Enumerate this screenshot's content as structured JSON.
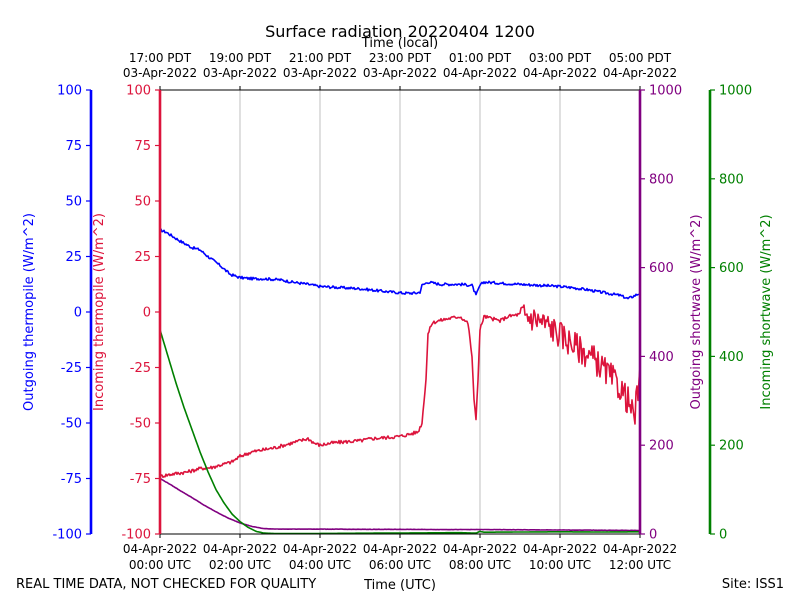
{
  "chart_data": {
    "type": "line",
    "title": "Surface radiation 20220404 1200",
    "top_xlabel": "Time (local)",
    "xlabel": "Time (UTC)",
    "footer_left": "REAL TIME DATA, NOT CHECKED FOR QUALITY",
    "footer_right": "Site: ISS1",
    "x_range_hours_utc": [
      0,
      12
    ],
    "grid": "vertical",
    "bottom_ticks": [
      {
        "h": 0,
        "l1": "04-Apr-2022",
        "l2": "00:00 UTC"
      },
      {
        "h": 2,
        "l1": "04-Apr-2022",
        "l2": "02:00 UTC"
      },
      {
        "h": 4,
        "l1": "04-Apr-2022",
        "l2": "04:00 UTC"
      },
      {
        "h": 6,
        "l1": "04-Apr-2022",
        "l2": "06:00 UTC"
      },
      {
        "h": 8,
        "l1": "04-Apr-2022",
        "l2": "08:00 UTC"
      },
      {
        "h": 10,
        "l1": "04-Apr-2022",
        "l2": "10:00 UTC"
      },
      {
        "h": 12,
        "l1": "04-Apr-2022",
        "l2": "12:00 UTC"
      }
    ],
    "top_ticks": [
      {
        "h": 0,
        "l1": "17:00 PDT",
        "l2": "03-Apr-2022"
      },
      {
        "h": 2,
        "l1": "19:00 PDT",
        "l2": "03-Apr-2022"
      },
      {
        "h": 4,
        "l1": "21:00 PDT",
        "l2": "03-Apr-2022"
      },
      {
        "h": 6,
        "l1": "23:00 PDT",
        "l2": "03-Apr-2022"
      },
      {
        "h": 8,
        "l1": "01:00 PDT",
        "l2": "04-Apr-2022"
      },
      {
        "h": 10,
        "l1": "03:00 PDT",
        "l2": "04-Apr-2022"
      },
      {
        "h": 12,
        "l1": "05:00 PDT",
        "l2": "04-Apr-2022"
      }
    ],
    "axes": [
      {
        "id": "out_thermo",
        "label": "Outgoing thermopile (W/m^2)",
        "color": "#0000ff",
        "range": [
          -100,
          100
        ],
        "ticks": [
          -100,
          -75,
          -50,
          -25,
          0,
          25,
          50,
          75,
          100
        ]
      },
      {
        "id": "in_thermo",
        "label": "Incoming thermopile (W/m^2)",
        "color": "#dc143c",
        "range": [
          -100,
          100
        ],
        "ticks": [
          -100,
          -75,
          -50,
          -25,
          0,
          25,
          50,
          75,
          100
        ]
      },
      {
        "id": "out_sw",
        "label": "Outgoing shortwave (W/m^2)",
        "color": "#800080",
        "range": [
          0,
          1000
        ],
        "ticks": [
          0,
          200,
          400,
          600,
          800,
          1000
        ]
      },
      {
        "id": "in_sw",
        "label": "Incoming shortwave (W/m^2)",
        "color": "#008000",
        "range": [
          0,
          1000
        ],
        "ticks": [
          0,
          200,
          400,
          600,
          800,
          1000
        ]
      }
    ],
    "series": [
      {
        "name": "Outgoing thermopile",
        "axis": "out_thermo",
        "color": "#0000ff",
        "noise": 0.6,
        "x": [
          0,
          0.15,
          0.5,
          0.8,
          1.0,
          1.2,
          1.5,
          1.75,
          2.0,
          2.3,
          2.6,
          3.0,
          3.3,
          3.7,
          4.0,
          4.5,
          5.0,
          5.5,
          5.8,
          6.1,
          6.4,
          6.5,
          6.55,
          6.7,
          7.0,
          7.5,
          7.8,
          7.9,
          8.0,
          8.1,
          8.5,
          9.0,
          9.5,
          10.0,
          10.3,
          10.7,
          11.0,
          11.5,
          11.7,
          12.0
        ],
        "y": [
          37,
          36,
          32,
          29,
          28,
          25,
          21,
          17,
          15.5,
          15,
          15,
          14.5,
          13.5,
          12.5,
          11.5,
          11,
          10.5,
          9.5,
          9,
          8.5,
          8.5,
          9,
          12,
          13.5,
          12.5,
          12.5,
          12,
          7.5,
          12,
          13.5,
          13,
          12.5,
          12,
          11.5,
          11,
          10,
          9,
          7.5,
          6,
          8.5
        ]
      },
      {
        "name": "Incoming thermopile",
        "axis": "in_thermo",
        "color": "#dc143c",
        "noise": 0.8,
        "x": [
          0,
          0.3,
          0.7,
          1.0,
          1.3,
          1.6,
          1.8,
          2.0,
          2.3,
          2.6,
          2.9,
          3.2,
          3.5,
          3.7,
          3.85,
          4.0,
          4.3,
          4.6,
          5.0,
          5.3,
          5.7,
          6.0,
          6.25,
          6.45,
          6.55,
          6.65,
          6.7,
          6.8,
          6.95,
          7.2,
          7.5,
          7.7,
          7.8,
          7.85,
          7.9,
          7.95,
          8.0,
          8.1,
          8.3,
          8.5,
          8.7,
          9.0,
          9.4,
          9.7,
          10.0,
          10.3,
          10.6,
          10.9,
          11.2,
          11.5,
          11.7,
          11.85,
          12.0
        ],
        "y": [
          -74,
          -73,
          -72,
          -70.5,
          -70,
          -68.5,
          -67.5,
          -65,
          -63,
          -62,
          -61,
          -59.5,
          -58,
          -57,
          -59,
          -60,
          -59,
          -58.5,
          -58,
          -57,
          -56.5,
          -56,
          -55,
          -54,
          -50,
          -30,
          -10,
          -5,
          -4,
          -3,
          -2,
          -5,
          -20,
          -40,
          -48,
          -30,
          -8,
          -2,
          -3,
          -4,
          -2,
          -1,
          -3,
          -6,
          -10,
          -14,
          -18,
          -22,
          -28,
          -34,
          -40,
          -48,
          -30
        ]
      },
      {
        "name": "Outgoing shortwave",
        "axis": "out_sw",
        "color": "#800080",
        "noise": 0.3,
        "x": [
          0,
          0.25,
          0.5,
          0.8,
          1.1,
          1.4,
          1.7,
          2.0,
          2.3,
          2.6,
          3.0,
          4.0,
          5.0,
          6.0,
          7.0,
          8.0,
          9.0,
          10.0,
          11.0,
          12.0
        ],
        "y": [
          125,
          112,
          98,
          82,
          65,
          50,
          36,
          25,
          17,
          12,
          11,
          11,
          10.5,
          10.5,
          10,
          10,
          9.5,
          9,
          8.5,
          8
        ]
      },
      {
        "name": "Incoming shortwave",
        "axis": "in_sw",
        "color": "#008000",
        "noise": 0,
        "x": [
          0,
          0.2,
          0.4,
          0.6,
          0.8,
          1.0,
          1.2,
          1.4,
          1.6,
          1.8,
          2.0,
          2.2,
          2.4,
          2.6,
          2.9,
          3.5,
          4.5,
          5.5,
          6.5,
          7.5,
          7.9,
          8.0,
          8.1,
          9.0,
          10.0,
          11.0,
          12.0
        ],
        "y": [
          460,
          400,
          340,
          285,
          235,
          185,
          140,
          100,
          70,
          45,
          28,
          15,
          6,
          2,
          1,
          1,
          1.5,
          2,
          2.5,
          3,
          2,
          6,
          4,
          4.5,
          5,
          4.5,
          5
        ]
      }
    ]
  }
}
